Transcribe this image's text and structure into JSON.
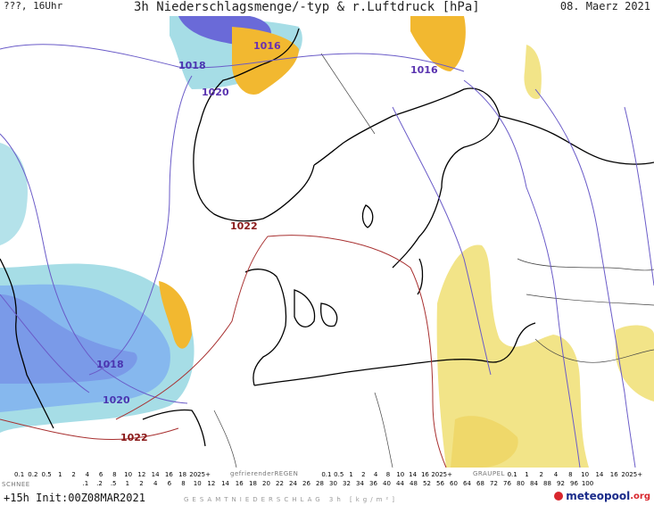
{
  "header": {
    "left": "???, 16Uhr",
    "title": "3h Niederschlagsmenge/-typ & r.Luftdruck [hPa]",
    "date": "08. Maerz 2021"
  },
  "isobars": [
    {
      "label": "1016",
      "color": "#6a2fb0"
    },
    {
      "label": "1018",
      "color": "#4a35b0"
    },
    {
      "label": "1020",
      "color": "#5a34b0"
    },
    {
      "label": "1016",
      "color": "#5a34b0"
    },
    {
      "label": "1022",
      "color": "#8a1a1a"
    },
    {
      "label": "1018",
      "color": "#4a35b0"
    },
    {
      "label": "1020",
      "color": "#4a35b0"
    },
    {
      "label": "1022",
      "color": "#8a1a1a"
    }
  ],
  "legend": {
    "schnee_label": "SCHNEE",
    "schnee_top": [
      "0.1",
      "0.2",
      "0.5",
      "1",
      "2",
      "4",
      "6",
      "8",
      "10",
      "12",
      "14",
      "16",
      "18",
      "2025+"
    ],
    "schnee_bottom": [
      ".1",
      ".2",
      ".5",
      "1",
      "2",
      "4",
      "6",
      "8",
      "10",
      "12",
      "14",
      "16"
    ],
    "gefrierend_label": "gefrierenderREGEN",
    "gefrierend": [
      "0.1",
      "0.5",
      "1",
      "2",
      "4",
      "8",
      "10",
      "14",
      "16",
      "2025+"
    ],
    "graupel_label": "GRAUPEL",
    "graupel": [
      "0.1",
      "1",
      "2",
      "4",
      "8",
      "10",
      "14",
      "16",
      "2025+"
    ],
    "rain": [
      "18",
      "20",
      "22",
      "24",
      "26",
      "28",
      "30",
      "32",
      "34",
      "36",
      "40",
      "44",
      "48",
      "52",
      "56",
      "60",
      "64",
      "68",
      "72",
      "76",
      "80",
      "84",
      "88",
      "92",
      "96",
      "100"
    ],
    "total_label": "GESAMTNIEDERSCHLAG 3h [kg/m²]",
    "colors": {
      "snow_light": "#a8e0e8",
      "snow_blue": "#7aa6f0",
      "snow_deep": "#4a4ad0",
      "rain_yellow": "#f2e488",
      "rain_orange": "#f2b830",
      "freezing": "#f090c0",
      "graupel": "#90e090"
    }
  },
  "footer": {
    "run": "+15h Init:00Z08MAR2021",
    "brand": "meteopool",
    "brand_tld": ".org"
  }
}
